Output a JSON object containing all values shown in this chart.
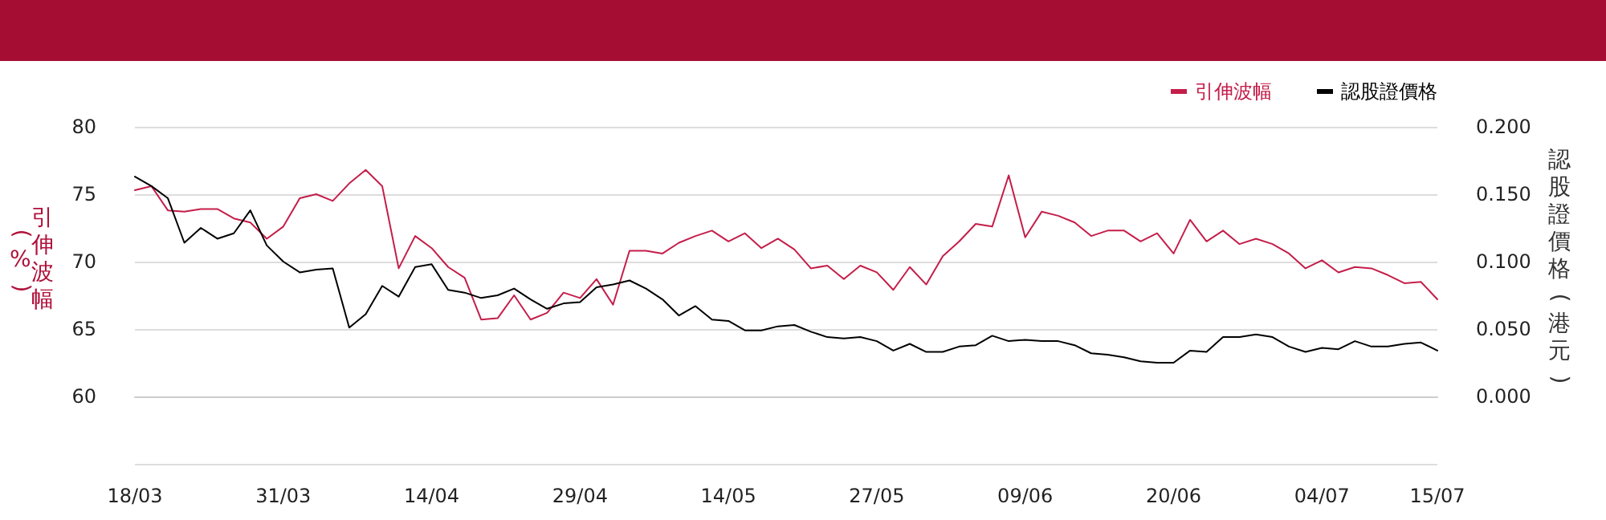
{
  "chart_data": {
    "type": "line",
    "ylabel": "引伸波幅(%)",
    "y2label": "認股證價格(港元)",
    "categories": [
      "18/03",
      null,
      null,
      null,
      null,
      null,
      null,
      null,
      null,
      "31/03",
      null,
      null,
      null,
      null,
      null,
      null,
      null,
      null,
      "14/04",
      null,
      null,
      null,
      null,
      null,
      null,
      null,
      null,
      "29/04",
      null,
      null,
      null,
      null,
      null,
      null,
      null,
      null,
      "14/05",
      null,
      null,
      null,
      null,
      null,
      null,
      null,
      null,
      "27/05",
      null,
      null,
      null,
      null,
      null,
      null,
      null,
      null,
      "09/06",
      null,
      null,
      null,
      null,
      null,
      null,
      null,
      null,
      "20/06",
      null,
      null,
      null,
      null,
      null,
      null,
      null,
      null,
      "04/07",
      null,
      null,
      null,
      null,
      null,
      null,
      "15/07"
    ],
    "series": [
      {
        "name": "引伸波幅",
        "color": "#c41e4a",
        "values": [
          75.3,
          75.6,
          73.8,
          73.7,
          73.9,
          73.9,
          73.2,
          72.9,
          71.7,
          72.6,
          74.7,
          75.0,
          74.5,
          75.8,
          76.8,
          75.6,
          69.5,
          71.9,
          71.0,
          69.6,
          68.8,
          65.7,
          65.8,
          67.5,
          65.7,
          66.2,
          67.7,
          67.3,
          68.7,
          66.8,
          70.8,
          70.8,
          70.6,
          71.4,
          71.9,
          72.3,
          71.5,
          72.1,
          71.0,
          71.7,
          70.9,
          69.5,
          69.7,
          68.7,
          69.7,
          69.2,
          67.9,
          69.6,
          68.3,
          70.4,
          71.5,
          72.8,
          72.6,
          76.4,
          71.8,
          73.7,
          73.4,
          72.9,
          71.9,
          72.3,
          72.3,
          71.5,
          72.1,
          70.6,
          73.1,
          71.5,
          72.3,
          71.3,
          71.7,
          71.3,
          70.6,
          69.5,
          70.1,
          69.2,
          69.6,
          69.5,
          69.0,
          68.4,
          68.5,
          67.2
        ]
      },
      {
        "name": "認股證價格",
        "color": "#000000",
        "axis": "y2",
        "values": [
          0.163,
          0.156,
          0.147,
          0.114,
          0.125,
          0.117,
          0.121,
          0.138,
          0.112,
          0.1,
          0.092,
          0.094,
          0.095,
          0.051,
          0.061,
          0.082,
          0.074,
          0.096,
          0.098,
          0.079,
          0.077,
          0.073,
          0.075,
          0.08,
          0.072,
          0.065,
          0.069,
          0.07,
          0.081,
          0.083,
          0.086,
          0.08,
          0.072,
          0.06,
          0.067,
          0.057,
          0.056,
          0.049,
          0.049,
          0.052,
          0.053,
          0.048,
          0.044,
          0.043,
          0.044,
          0.041,
          0.034,
          0.039,
          0.033,
          0.033,
          0.037,
          0.038,
          0.045,
          0.041,
          0.042,
          0.041,
          0.041,
          0.038,
          0.032,
          0.031,
          0.029,
          0.026,
          0.025,
          0.025,
          0.034,
          0.033,
          0.044,
          0.044,
          0.046,
          0.044,
          0.037,
          0.033,
          0.036,
          0.035,
          0.041,
          0.037,
          0.037,
          0.039,
          0.04,
          0.034
        ]
      }
    ],
    "ylim": [
      55,
      80
    ],
    "yticks": [
      {
        "value": 55,
        "label": null
      },
      60,
      65,
      70,
      75,
      80
    ],
    "y2lim": [
      -0.05,
      0.2
    ],
    "y2ticks": [
      {
        "value": -0.05,
        "label": null
      },
      {
        "value": 0,
        "label": "0.000"
      },
      {
        "value": 0.05,
        "label": "0.050"
      },
      {
        "value": 0.1,
        "label": "0.100"
      },
      {
        "value": 0.15,
        "label": "0.150"
      },
      {
        "value": 0.2,
        "label": "0.200"
      }
    ],
    "grid": "y",
    "legend": "top right",
    "marker": "none",
    "line_style": "solid"
  }
}
